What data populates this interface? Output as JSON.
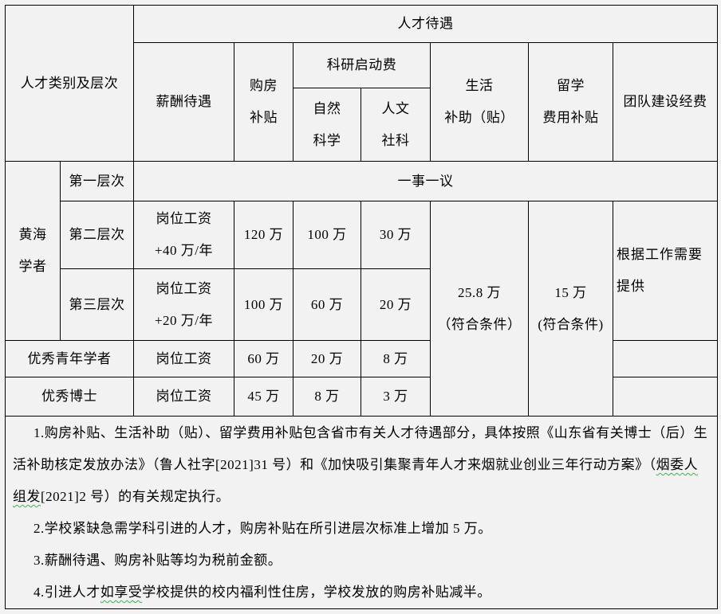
{
  "page": {
    "background_color": "#f2f2f2",
    "border_color": "#000000",
    "wavy_underline_color": "#3cb54a"
  },
  "table": {
    "header": {
      "talent_category": "人才类别及层次",
      "treatment": "人才待遇",
      "salary": "薪酬待遇",
      "housing_subsidy": "购房\n补贴",
      "research_startup": "科研启动费",
      "natural_science": "自然\n科学",
      "humanities_social": "人文\n社科",
      "living_subsidy": "生活\n补助（贴）",
      "abroad_subsidy": "留学\n费用补贴",
      "team_funds": "团队建设经费"
    },
    "body": {
      "huanghai_scholar": "黄海\n学者",
      "row_level1": {
        "level": "第一层次",
        "all_columns": "一事一议"
      },
      "row_level2": {
        "level": "第二层次",
        "salary": "岗位工资\n+40 万/年",
        "housing": "120 万",
        "natural": "100 万",
        "humanities": "30 万"
      },
      "row_level3": {
        "level": "第三层次",
        "salary": "岗位工资\n+20 万/年",
        "housing": "100 万",
        "natural": "60 万",
        "humanities": "20 万"
      },
      "row_young_scholar": {
        "category": "优秀青年学者",
        "salary": "岗位工资",
        "housing": "60 万",
        "natural": "20 万",
        "humanities": "8 万"
      },
      "row_doctor": {
        "category": "优秀博士",
        "salary": "岗位工资",
        "housing": "45 万",
        "natural": "8 万",
        "humanities": "3 万"
      },
      "living_value": "25.8 万\n（符合条件）",
      "abroad_value": "15 万\n(符合条件)",
      "team_value": "根据工作需要\n提供"
    }
  },
  "notes": {
    "items": [
      {
        "parts": [
          {
            "t": "1.购房补贴、生活补助（贴）、留学费用补贴包含省市有关人才待遇部分，具体按照《山东省有关博士（后）生活补助核定发放办法》（鲁人社字[2021]31 号）和《加快吸引集聚青年人才来烟就业创业三年行动方案》（",
            "w": false
          },
          {
            "t": "烟委人组发",
            "w": true
          },
          {
            "t": "[2021]2 号）的有关规定执行。",
            "w": false
          }
        ]
      },
      {
        "parts": [
          {
            "t": "2.学校紧缺急需学科引进的人才，购房补贴在所引进层次标准上增加 5 万。",
            "w": false
          }
        ]
      },
      {
        "parts": [
          {
            "t": "3.薪酬待遇、购房补贴等均为税前金额。",
            "w": false
          }
        ]
      },
      {
        "parts": [
          {
            "t": "4.引进人才",
            "w": false
          },
          {
            "t": "如享受",
            "w": true
          },
          {
            "t": "学校提供的校内福利性住房，学校发放的购房补贴减半。",
            "w": false
          }
        ]
      }
    ]
  }
}
